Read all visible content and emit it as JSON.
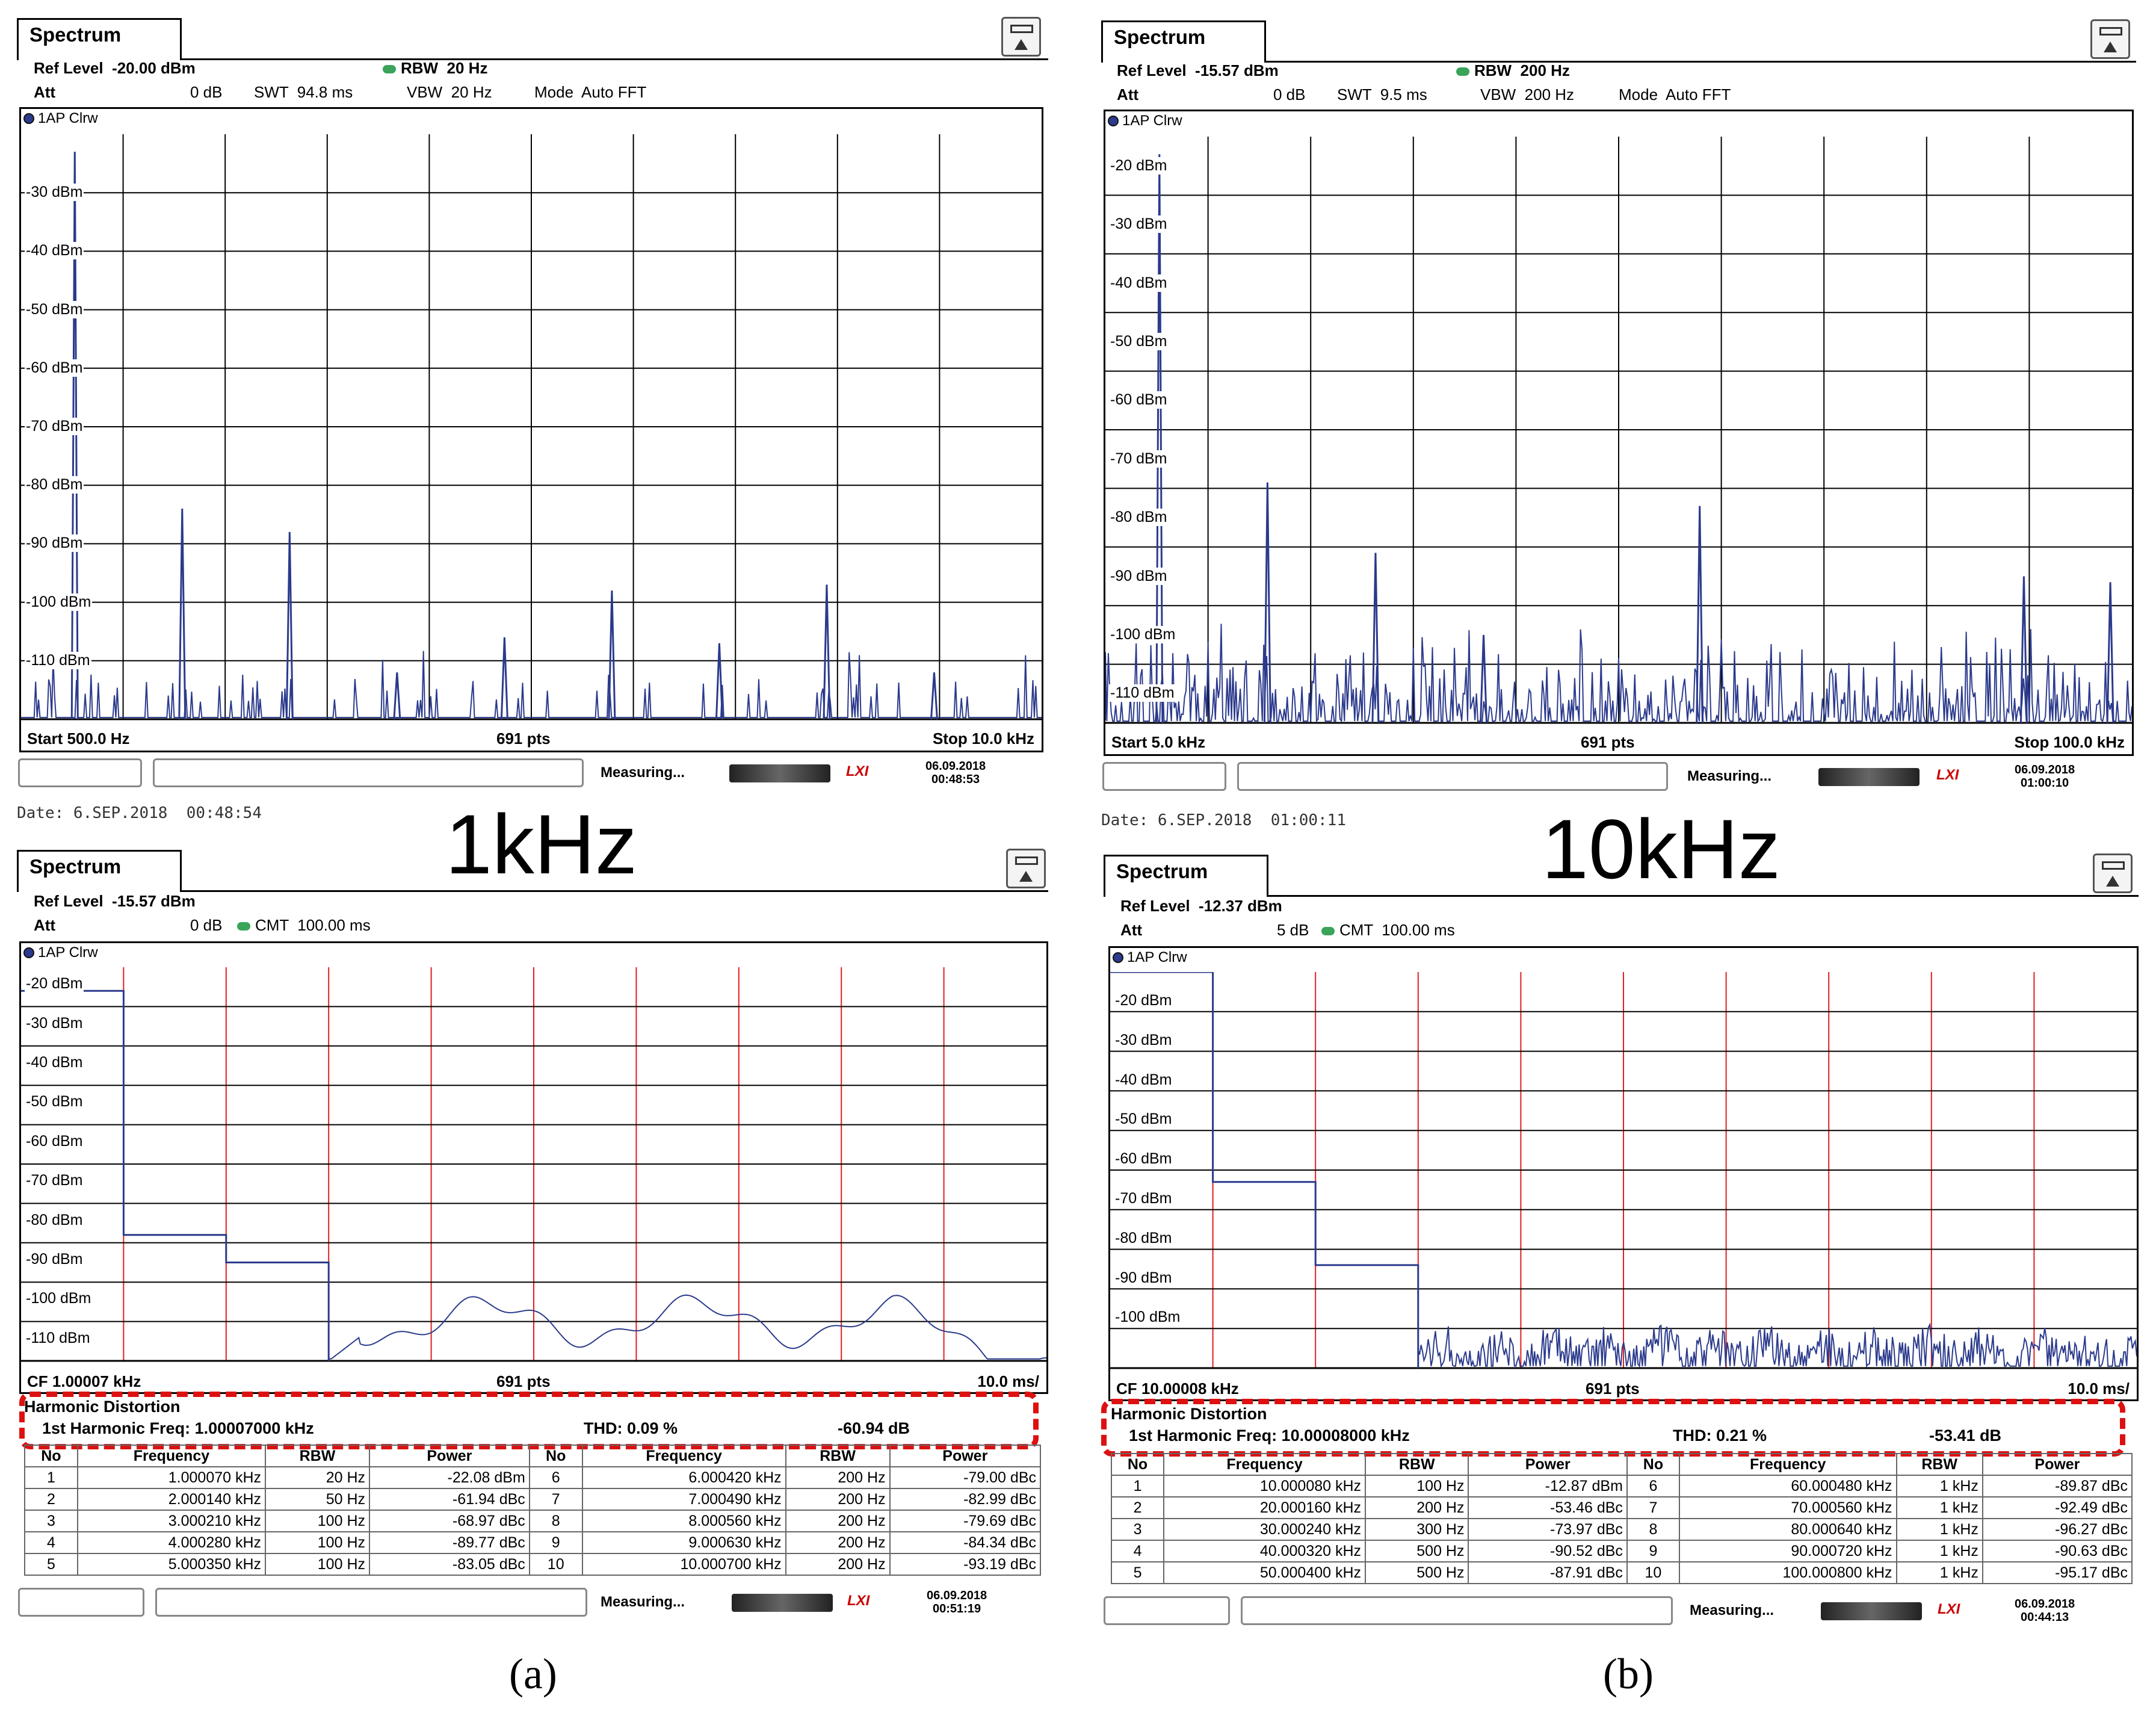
{
  "panels": [
    {
      "tab": "Spectrum",
      "hdr": {
        "r1": "Ref Level  -20.00 dBm",
        "rbw": "RBW  20 Hz",
        "r2a": "Att",
        "r2b": "0 dB",
        "swt": "SWT  94.8 ms",
        "vbw": "VBW  20 Hz",
        "mode": "Mode  Auto FFT"
      },
      "trace": "1AP Clrw",
      "chart_data": {
        "type": "line",
        "x_range_khz": [
          0.5,
          10.0
        ],
        "ylim": [
          -120,
          -20
        ],
        "y_ticks": [
          "-30 dBm",
          "-40 dBm",
          "-50 dBm",
          "-60 dBm",
          "-70 dBm",
          "-80 dBm",
          "-90 dBm",
          "-100 dBm",
          "-110 dBm"
        ],
        "peaks": [
          {
            "x": 1.0,
            "y": -23
          },
          {
            "x": 2.0,
            "y": -84
          },
          {
            "x": 3.0,
            "y": -88
          },
          {
            "x": 4.0,
            "y": -112
          },
          {
            "x": 5.0,
            "y": -106
          },
          {
            "x": 6.0,
            "y": -98
          },
          {
            "x": 7.0,
            "y": -107
          },
          {
            "x": 8.0,
            "y": -97
          },
          {
            "x": 9.0,
            "y": -112
          }
        ]
      },
      "foot": {
        "left": "Start 500.0 Hz",
        "mid": "691 pts",
        "right": "Stop 10.0 kHz"
      },
      "status": {
        "meas": "Measuring...",
        "date": "06.09.2018",
        "time": "00:48:53"
      },
      "caption_date": "Date: 6.SEP.2018  00:48:54"
    },
    {
      "tab": "Spectrum",
      "hdr": {
        "r1": "Ref Level  -15.57 dBm",
        "rbw": "RBW  200 Hz",
        "r2a": "Att",
        "r2b": "0 dB",
        "swt": "SWT  9.5 ms",
        "vbw": "VBW  200 Hz",
        "mode": "Mode  Auto FFT"
      },
      "trace": "1AP Clrw",
      "chart_data": {
        "type": "line",
        "x_range_khz": [
          5,
          100
        ],
        "ylim": [
          -115,
          -15
        ],
        "y_ticks": [
          "-20 dBm",
          "-30 dBm",
          "-40 dBm",
          "-50 dBm",
          "-60 dBm",
          "-70 dBm",
          "-80 dBm",
          "-90 dBm",
          "-100 dBm",
          "-110 dBm"
        ],
        "peaks": [
          {
            "x": 10,
            "y": -18
          },
          {
            "x": 20,
            "y": -74
          },
          {
            "x": 30,
            "y": -86
          },
          {
            "x": 40,
            "y": -100
          },
          {
            "x": 60,
            "y": -78
          },
          {
            "x": 90,
            "y": -90
          },
          {
            "x": 98,
            "y": -91
          }
        ]
      },
      "foot": {
        "left": "Start 5.0 kHz",
        "mid": "691 pts",
        "right": "Stop 100.0 kHz"
      },
      "status": {
        "meas": "Measuring...",
        "date": "06.09.2018",
        "time": "01:00:10"
      },
      "caption_date": "Date: 6.SEP.2018  01:00:11"
    },
    {
      "tab": "Spectrum",
      "hdr": {
        "r1": "Ref Level  -15.57 dBm",
        "r2a": "Att",
        "r2b": "0 dB",
        "cmt": "CMT  100.00 ms"
      },
      "trace": "1AP Clrw",
      "chart_data": {
        "type": "line",
        "x_range_ms": [
          0,
          10
        ],
        "ylim": [
          -116,
          -16
        ],
        "y_ticks": [
          "-20 dBm",
          "-30 dBm",
          "-40 dBm",
          "-50 dBm",
          "-60 dBm",
          "-70 dBm",
          "-80 dBm",
          "-90 dBm",
          "-100 dBm",
          "-110 dBm"
        ],
        "steps": [
          {
            "from": 0,
            "to": 1,
            "y": -22
          },
          {
            "from": 1,
            "to": 2,
            "y": -84
          },
          {
            "from": 2,
            "to": 3,
            "y": -91
          }
        ]
      },
      "foot": {
        "left": "CF 1.00007 kHz",
        "mid": "691 pts",
        "right": "10.0 ms/"
      },
      "harmonic": {
        "title": "Harmonic Distortion",
        "freq": "1st Harmonic Freq: 1.00007000 kHz",
        "thd": "THD: 0.09 %",
        "db": "-60.94 dB",
        "headers": [
          "No",
          "Frequency",
          "RBW",
          "Power",
          "No",
          "Frequency",
          "RBW",
          "Power"
        ],
        "rows": [
          [
            "1",
            "1.000070 kHz",
            "20 Hz",
            "-22.08 dBm",
            "6",
            "6.000420 kHz",
            "200 Hz",
            "-79.00 dBc"
          ],
          [
            "2",
            "2.000140 kHz",
            "50 Hz",
            "-61.94 dBc",
            "7",
            "7.000490 kHz",
            "200 Hz",
            "-82.99 dBc"
          ],
          [
            "3",
            "3.000210 kHz",
            "100 Hz",
            "-68.97 dBc",
            "8",
            "8.000560 kHz",
            "200 Hz",
            "-79.69 dBc"
          ],
          [
            "4",
            "4.000280 kHz",
            "100 Hz",
            "-89.77 dBc",
            "9",
            "9.000630 kHz",
            "200 Hz",
            "-84.34 dBc"
          ],
          [
            "5",
            "5.000350 kHz",
            "100 Hz",
            "-83.05 dBc",
            "10",
            "10.000700 kHz",
            "200 Hz",
            "-93.19 dBc"
          ]
        ]
      },
      "status": {
        "meas": "Measuring...",
        "date": "06.09.2018",
        "time": "00:51:19"
      }
    },
    {
      "tab": "Spectrum",
      "hdr": {
        "r1": "Ref Level  -12.37 dBm",
        "r2a": "Att",
        "r2b": "5 dB",
        "cmt": "CMT  100.00 ms"
      },
      "trace": "1AP Clrw",
      "chart_data": {
        "type": "line",
        "x_range_ms": [
          0,
          10
        ],
        "ylim": [
          -113,
          -13
        ],
        "y_ticks": [
          "-20 dBm",
          "-30 dBm",
          "-40 dBm",
          "-50 dBm",
          "-60 dBm",
          "-70 dBm",
          "-80 dBm",
          "-90 dBm",
          "-100 dBm"
        ],
        "steps": [
          {
            "from": 0,
            "to": 1,
            "y": -13
          },
          {
            "from": 1,
            "to": 2,
            "y": -66
          },
          {
            "from": 2,
            "to": 3,
            "y": -87
          }
        ]
      },
      "foot": {
        "left": "CF 10.00008 kHz",
        "mid": "691 pts",
        "right": "10.0 ms/"
      },
      "harmonic": {
        "title": "Harmonic Distortion",
        "freq": "1st Harmonic Freq: 10.00008000 kHz",
        "thd": "THD: 0.21 %",
        "db": "-53.41 dB",
        "headers": [
          "No",
          "Frequency",
          "RBW",
          "Power",
          "No",
          "Frequency",
          "RBW",
          "Power"
        ],
        "rows": [
          [
            "1",
            "10.000080 kHz",
            "100 Hz",
            "-12.87 dBm",
            "6",
            "60.000480 kHz",
            "1 kHz",
            "-89.87 dBc"
          ],
          [
            "2",
            "20.000160 kHz",
            "200 Hz",
            "-53.46 dBc",
            "7",
            "70.000560 kHz",
            "1 kHz",
            "-92.49 dBc"
          ],
          [
            "3",
            "30.000240 kHz",
            "300 Hz",
            "-73.97 dBc",
            "8",
            "80.000640 kHz",
            "1 kHz",
            "-96.27 dBc"
          ],
          [
            "4",
            "40.000320 kHz",
            "500 Hz",
            "-90.52 dBc",
            "9",
            "90.000720 kHz",
            "1 kHz",
            "-90.63 dBc"
          ],
          [
            "5",
            "50.000400 kHz",
            "500 Hz",
            "-87.91 dBc",
            "10",
            "100.000800 kHz",
            "1 kHz",
            "-95.17 dBc"
          ]
        ]
      },
      "status": {
        "meas": "Measuring...",
        "date": "06.09.2018",
        "time": "00:44:13"
      }
    }
  ],
  "labels": {
    "left": "1kHz",
    "right": "10kHz",
    "a": "(a)",
    "b": "(b)"
  },
  "colors": {
    "trace": "#2b3a8c",
    "red_grid": "#e02020",
    "dash": "#dd1111"
  }
}
